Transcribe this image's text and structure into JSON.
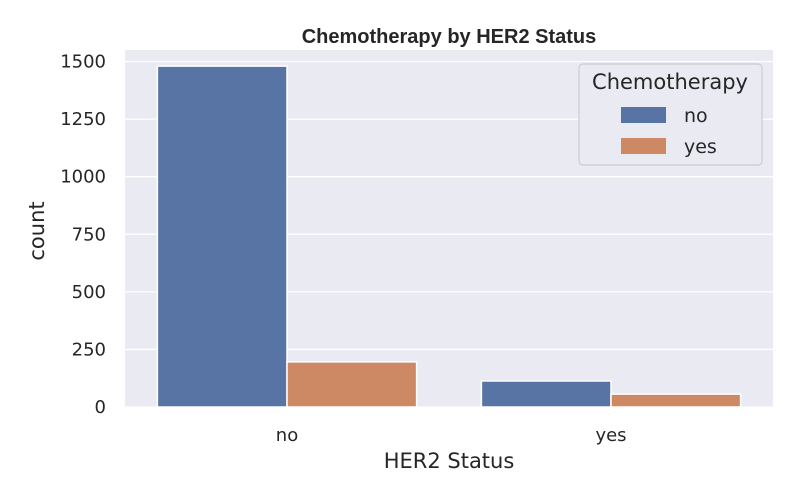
{
  "chart_data": {
    "type": "bar",
    "title": "Chemotherapy by HER2 Status",
    "xlabel": "HER2 Status",
    "ylabel": "count",
    "categories": [
      "no",
      "yes"
    ],
    "series": [
      {
        "name": "no",
        "values": [
          1480,
          113
        ],
        "color": "#5874a4"
      },
      {
        "name": "yes",
        "values": [
          196,
          56
        ],
        "color": "#cc8963"
      }
    ],
    "ylim": [
      0,
      1550
    ],
    "yticks": [
      0,
      250,
      500,
      750,
      1000,
      1250,
      1500
    ],
    "grid": true,
    "background": "#eaeaf2",
    "legend": {
      "title": "Chemotherapy",
      "position": "top-right"
    }
  }
}
